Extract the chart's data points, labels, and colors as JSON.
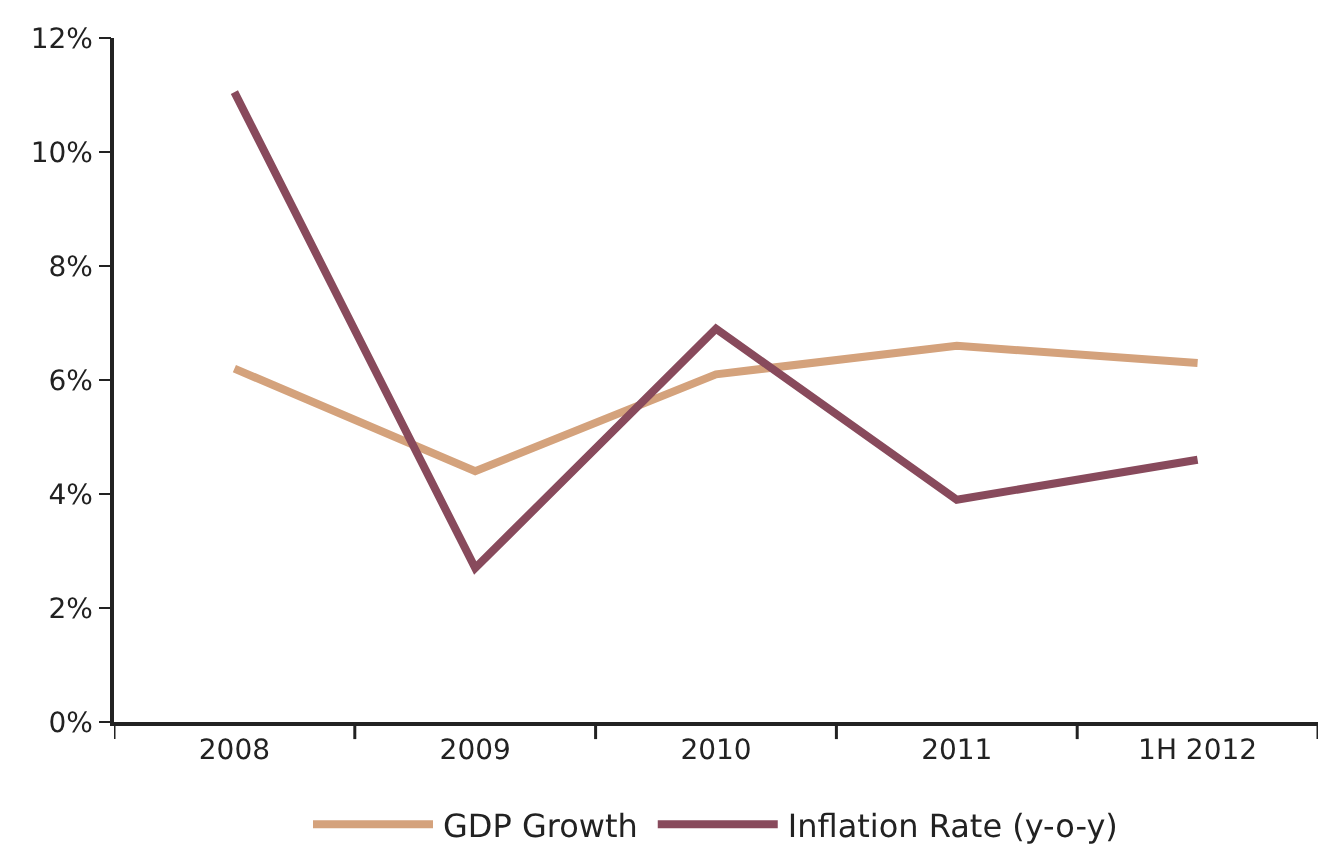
{
  "chart_data": {
    "type": "line",
    "categories": [
      "2008",
      "2009",
      "2010",
      "2011",
      "1H 2012"
    ],
    "series": [
      {
        "name": "GDP Growth",
        "color": "#d4a27c",
        "values": [
          6.2,
          4.4,
          6.1,
          6.6,
          6.3
        ]
      },
      {
        "name": "Inflation Rate (y-o-y)",
        "color": "#884a5c",
        "values": [
          11.05,
          2.7,
          6.9,
          3.9,
          4.6
        ]
      }
    ],
    "ylim": [
      0,
      12
    ],
    "yticks": [
      {
        "value": 0,
        "label": "0%"
      },
      {
        "value": 2,
        "label": "2%"
      },
      {
        "value": 4,
        "label": "4%"
      },
      {
        "value": 6,
        "label": "6%"
      },
      {
        "value": 8,
        "label": "8%"
      },
      {
        "value": 10,
        "label": "10%"
      },
      {
        "value": 12,
        "label": "12%"
      }
    ],
    "grid": false,
    "legend": "bottom",
    "marker": "none",
    "line_style": "solid"
  }
}
